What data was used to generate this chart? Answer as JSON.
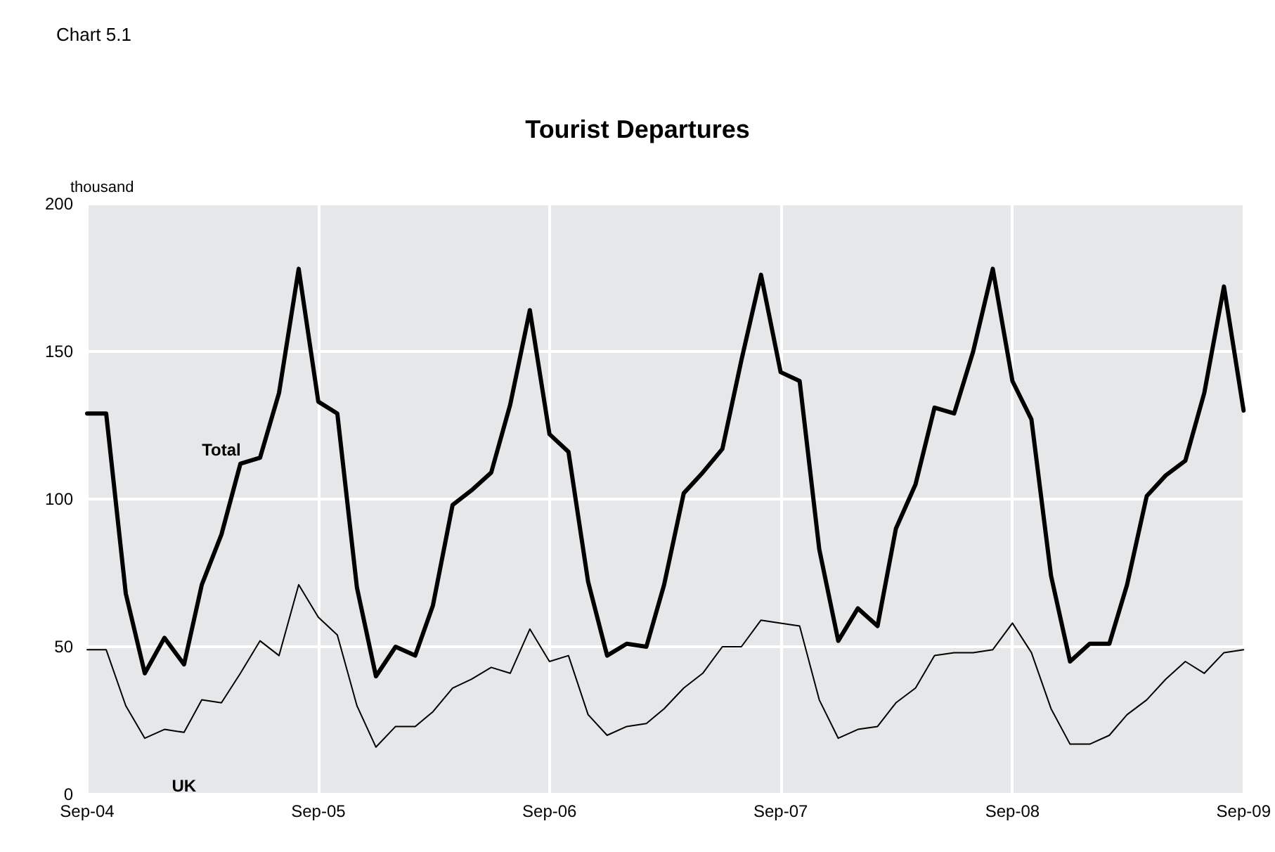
{
  "chart_data": {
    "type": "line",
    "title": "Tourist Departures",
    "ylabel": "thousand",
    "annotations": [
      "Chart 5.1"
    ],
    "x": [
      "2004-09",
      "2004-10",
      "2004-11",
      "2004-12",
      "2005-01",
      "2005-02",
      "2005-03",
      "2005-04",
      "2005-05",
      "2005-06",
      "2005-07",
      "2005-08",
      "2005-09",
      "2005-10",
      "2005-11",
      "2005-12",
      "2006-01",
      "2006-02",
      "2006-03",
      "2006-04",
      "2006-05",
      "2006-06",
      "2006-07",
      "2006-08",
      "2006-09",
      "2006-10",
      "2006-11",
      "2006-12",
      "2007-01",
      "2007-02",
      "2007-03",
      "2007-04",
      "2007-05",
      "2007-06",
      "2007-07",
      "2007-08",
      "2007-09",
      "2007-10",
      "2007-11",
      "2007-12",
      "2008-01",
      "2008-02",
      "2008-03",
      "2008-04",
      "2008-05",
      "2008-06",
      "2008-07",
      "2008-08",
      "2008-09",
      "2008-10",
      "2008-11",
      "2008-12",
      "2009-01",
      "2009-02",
      "2009-03",
      "2009-04",
      "2009-05",
      "2009-06",
      "2009-07",
      "2009-08",
      "2009-09"
    ],
    "series": [
      {
        "name": "Total",
        "color": "#000000",
        "values": [
          129,
          129,
          68,
          41,
          53,
          44,
          71,
          88,
          112,
          114,
          136,
          178,
          133,
          129,
          70,
          40,
          50,
          47,
          64,
          98,
          103,
          109,
          132,
          164,
          122,
          116,
          72,
          47,
          51,
          50,
          71,
          102,
          109,
          117,
          147,
          176,
          143,
          140,
          83,
          52,
          63,
          57,
          90,
          105,
          131,
          129,
          150,
          178,
          140,
          127,
          74,
          45,
          51,
          51,
          71,
          101,
          108,
          113,
          136,
          172,
          130
        ]
      },
      {
        "name": "UK",
        "color": "#000000",
        "values": [
          49,
          49,
          30,
          19,
          22,
          21,
          32,
          31,
          41,
          52,
          47,
          71,
          60,
          54,
          30,
          16,
          23,
          23,
          28,
          36,
          39,
          43,
          41,
          56,
          45,
          47,
          27,
          20,
          23,
          24,
          29,
          36,
          41,
          50,
          50,
          59,
          58,
          57,
          32,
          19,
          22,
          23,
          31,
          36,
          47,
          48,
          48,
          49,
          58,
          48,
          29,
          17,
          17,
          20,
          27,
          32,
          39,
          45,
          41,
          48,
          49
        ]
      }
    ],
    "xlim": [
      "2004-09",
      "2009-09"
    ],
    "xticks": [
      {
        "value": "2004-09",
        "label": "Sep-04"
      },
      {
        "value": "2005-09",
        "label": "Sep-05"
      },
      {
        "value": "2006-09",
        "label": "Sep-06"
      },
      {
        "value": "2007-09",
        "label": "Sep-07"
      },
      {
        "value": "2008-09",
        "label": "Sep-08"
      },
      {
        "value": "2009-09",
        "label": "Sep-09"
      }
    ],
    "ylim": [
      0,
      200
    ],
    "yticks": [
      0,
      50,
      100,
      150,
      200
    ],
    "grid": true,
    "legend": false,
    "marker": "none",
    "line_style": "solid"
  }
}
